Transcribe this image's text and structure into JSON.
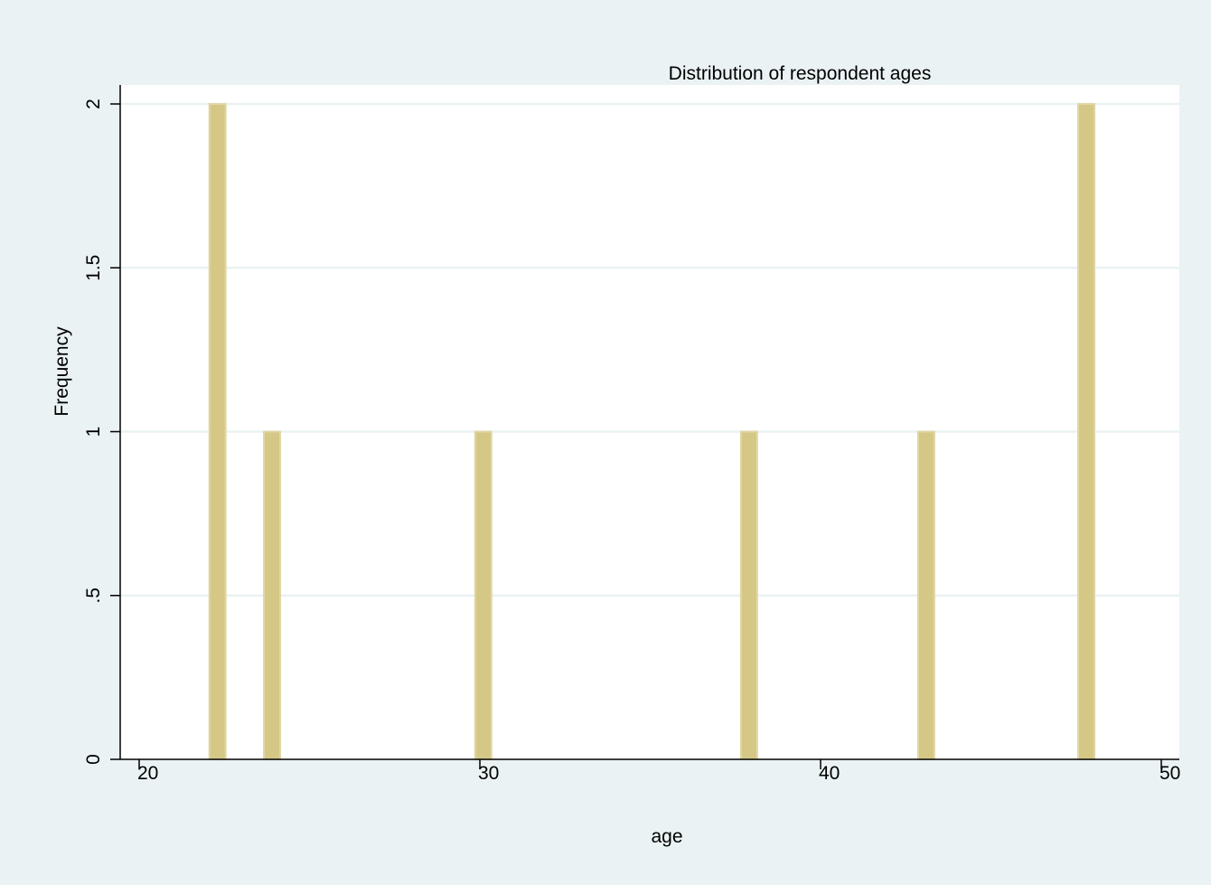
{
  "chart_data": {
    "type": "bar",
    "title": "Distribution of respondent ages",
    "xlabel": "age",
    "ylabel": "Frequency",
    "xlim": [
      20,
      50
    ],
    "ylim": [
      0,
      2
    ],
    "x_ticks": [
      {
        "value": 20,
        "label": "20"
      },
      {
        "value": 30,
        "label": "30"
      },
      {
        "value": 40,
        "label": "40"
      },
      {
        "value": 50,
        "label": "50"
      }
    ],
    "y_ticks": [
      {
        "value": 0,
        "label": "0"
      },
      {
        "value": 0.5,
        "label": ".5"
      },
      {
        "value": 1,
        "label": "1"
      },
      {
        "value": 1.5,
        "label": "1.5"
      },
      {
        "value": 2,
        "label": "2"
      }
    ],
    "bars": [
      {
        "x": 22.3,
        "value": 2
      },
      {
        "x": 23.9,
        "value": 1
      },
      {
        "x": 30.1,
        "value": 1
      },
      {
        "x": 37.9,
        "value": 1
      },
      {
        "x": 43.1,
        "value": 1
      },
      {
        "x": 47.8,
        "value": 2
      }
    ],
    "grid": true,
    "colors": {
      "background": "#eaf2f3",
      "plot_area": "#ffffff",
      "gridline": "#eaf2f3",
      "bar_fill": "#d5c886",
      "bar_edge": "#e0d6a6",
      "axis": "#000000"
    }
  }
}
